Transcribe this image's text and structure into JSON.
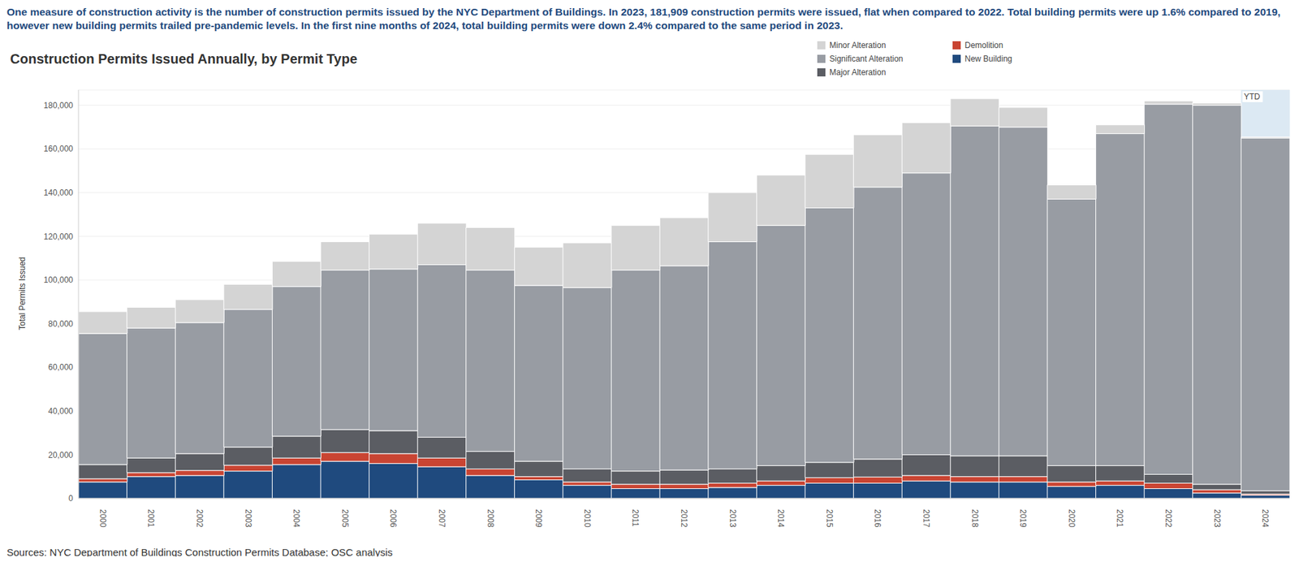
{
  "chart_data": {
    "type": "bar",
    "title": "Construction Permits Issued Annually, by Permit Type",
    "subtitle": "One measure of construction activity is the number of construction permits issued by the NYC Department of Buildings. In 2023, 181,909 construction permits were issued, flat when compared to 2022. Total building permits were up 1.6% compared to 2019, however new building permits trailed pre-pandemic levels. In the first nine months of 2024, total building permits were down 2.4% compared to the same period in 2023.",
    "y_label": "Total Permits Issued",
    "source": "Sources: NYC Department of Buildings Construction Permits Database; OSC analysis",
    "categories": [
      "2000",
      "2001",
      "2002",
      "2003",
      "2004",
      "2005",
      "2006",
      "2007",
      "2008",
      "2009",
      "2010",
      "2011",
      "2012",
      "2013",
      "2014",
      "2015",
      "2016",
      "2017",
      "2018",
      "2019",
      "2020",
      "2021",
      "2022",
      "2023",
      "2024"
    ],
    "series": [
      {
        "name": "New Building",
        "color": "#1f4a7e",
        "values": [
          7500,
          10000,
          10500,
          12500,
          15500,
          17000,
          16000,
          14500,
          10500,
          8500,
          6000,
          4500,
          4500,
          5000,
          6000,
          7000,
          7000,
          8000,
          7500,
          7500,
          5500,
          6000,
          4500,
          2500,
          1500
        ]
      },
      {
        "name": "Demolition",
        "color": "#c94432",
        "values": [
          1500,
          1800,
          2300,
          2700,
          3000,
          4000,
          4500,
          4000,
          3000,
          1500,
          1500,
          2000,
          2000,
          2000,
          2000,
          2500,
          2800,
          2500,
          2500,
          2500,
          2000,
          2000,
          2500,
          1500,
          500
        ]
      },
      {
        "name": "Major Alteration",
        "color": "#5b5d63",
        "values": [
          6500,
          6700,
          7700,
          8300,
          10000,
          10500,
          10500,
          9500,
          8000,
          7000,
          6000,
          6000,
          6500,
          6500,
          7000,
          7000,
          8200,
          9500,
          9500,
          9500,
          7500,
          7000,
          4000,
          2500,
          1500
        ]
      },
      {
        "name": "Significant Alteration",
        "color": "#989ca3",
        "values": [
          60000,
          59500,
          60000,
          63000,
          68500,
          73000,
          74000,
          79000,
          83000,
          80500,
          83000,
          92000,
          93500,
          104000,
          110000,
          116500,
          124500,
          129000,
          151000,
          150500,
          122000,
          152000,
          169500,
          173500,
          161500
        ]
      },
      {
        "name": "Minor Alteration",
        "color": "#d4d4d4",
        "values": [
          10000,
          9500,
          10500,
          11500,
          11500,
          13000,
          16000,
          19000,
          19500,
          17500,
          20500,
          20500,
          22000,
          22500,
          23000,
          24500,
          24000,
          23000,
          12500,
          9000,
          6500,
          4000,
          1500,
          1000,
          500
        ]
      }
    ],
    "ylim": [
      0,
      187000
    ],
    "yticks": [
      0,
      {
        "value": 20000,
        "label": "20,000"
      },
      {
        "value": 40000,
        "label": "40,000"
      },
      {
        "value": 60000,
        "label": "60,000"
      },
      {
        "value": 80000,
        "label": "80,000"
      },
      {
        "value": 100000,
        "label": "100,000"
      },
      {
        "value": 120000,
        "label": "120,000"
      },
      {
        "value": 140000,
        "label": "140,000"
      },
      {
        "value": 160000,
        "label": "160,000"
      },
      {
        "value": 180000,
        "label": "180,000"
      }
    ],
    "stacked": true,
    "grid": true,
    "legend": "top-right",
    "annotations": [
      {
        "category": "2024",
        "text": "YTD"
      }
    ]
  }
}
